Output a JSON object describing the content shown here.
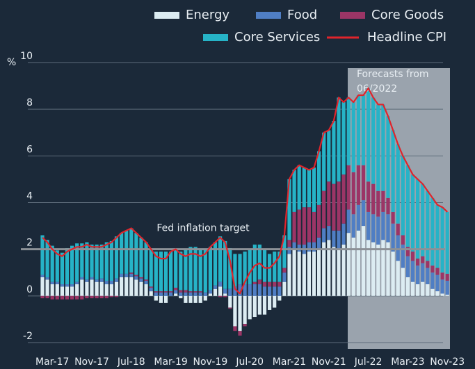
{
  "chart_data": {
    "type": "bar",
    "categories": [
      null,
      null,
      "Mar-17",
      null,
      null,
      null,
      null,
      null,
      null,
      null,
      "Nov-17",
      null,
      null,
      null,
      null,
      null,
      null,
      null,
      "Jul-18",
      null,
      null,
      null,
      null,
      null,
      null,
      null,
      "Mar-19",
      null,
      null,
      null,
      null,
      null,
      null,
      null,
      "Nov-19",
      null,
      null,
      null,
      null,
      null,
      null,
      null,
      "Jul-20",
      null,
      null,
      null,
      null,
      null,
      null,
      null,
      "Mar-21",
      null,
      null,
      null,
      null,
      null,
      null,
      null,
      "Nov-21",
      null,
      null,
      null,
      null,
      null,
      null,
      null,
      "Jul-22",
      null,
      null,
      null,
      null,
      null,
      null,
      null,
      "Mar-23",
      null,
      null,
      null,
      null,
      null,
      null,
      null,
      "Nov-23"
    ],
    "series": [
      {
        "name": "Energy",
        "color": "#dcecf2",
        "values": [
          0.8,
          0.7,
          0.5,
          0.5,
          0.4,
          0.4,
          0.4,
          0.5,
          0.7,
          0.6,
          0.7,
          0.6,
          0.6,
          0.5,
          0.5,
          0.6,
          0.8,
          0.8,
          0.8,
          0.7,
          0.6,
          0.5,
          0.2,
          -0.2,
          -0.3,
          -0.3,
          0.0,
          0.1,
          -0.1,
          -0.3,
          -0.3,
          -0.3,
          -0.3,
          -0.2,
          0.1,
          0.3,
          0.4,
          0.1,
          -0.5,
          -1.3,
          -1.5,
          -1.2,
          -1.0,
          -0.9,
          -0.8,
          -0.8,
          -0.6,
          -0.5,
          -0.2,
          0.6,
          1.8,
          2.0,
          1.9,
          1.8,
          1.9,
          1.9,
          2.0,
          2.3,
          2.4,
          2.1,
          2.0,
          2.2,
          2.7,
          2.5,
          2.8,
          3.0,
          2.4,
          2.3,
          2.2,
          2.4,
          2.3,
          1.9,
          1.5,
          1.2,
          0.8,
          0.6,
          0.5,
          0.6,
          0.5,
          0.3,
          0.2,
          0.1,
          0.05
        ]
      },
      {
        "name": "Food",
        "color": "#4f7ec4",
        "values": [
          0.1,
          0.1,
          0.1,
          0.1,
          0.1,
          0.1,
          0.1,
          0.1,
          0.1,
          0.1,
          0.1,
          0.1,
          0.15,
          0.15,
          0.15,
          0.15,
          0.15,
          0.15,
          0.15,
          0.15,
          0.15,
          0.15,
          0.15,
          0.15,
          0.15,
          0.15,
          0.15,
          0.15,
          0.15,
          0.15,
          0.15,
          0.15,
          0.15,
          0.15,
          0.15,
          0.15,
          0.2,
          0.2,
          0.3,
          0.4,
          0.5,
          0.5,
          0.5,
          0.5,
          0.5,
          0.4,
          0.4,
          0.4,
          0.4,
          0.4,
          0.3,
          0.3,
          0.3,
          0.4,
          0.4,
          0.4,
          0.5,
          0.6,
          0.6,
          0.7,
          0.8,
          0.9,
          1.0,
          1.0,
          1.1,
          1.1,
          1.2,
          1.2,
          1.2,
          1.2,
          1.2,
          1.2,
          1.1,
          1.0,
          0.9,
          0.9,
          0.8,
          0.8,
          0.7,
          0.7,
          0.7,
          0.6,
          0.6
        ]
      },
      {
        "name": "Core Goods",
        "color": "#9b3566",
        "values": [
          -0.1,
          -0.1,
          -0.15,
          -0.15,
          -0.15,
          -0.15,
          -0.15,
          -0.15,
          -0.15,
          -0.1,
          -0.1,
          -0.1,
          -0.1,
          -0.1,
          -0.05,
          -0.05,
          0,
          0,
          0.05,
          0.05,
          0.05,
          0.05,
          0.05,
          0.05,
          0.05,
          0.05,
          0.05,
          0.1,
          0.1,
          0.1,
          0.05,
          0.05,
          0.05,
          0,
          0,
          0,
          -0.05,
          -0.05,
          -0.05,
          -0.2,
          -0.2,
          -0.1,
          0,
          0.1,
          0.2,
          0.2,
          0.2,
          0.2,
          0.2,
          0.2,
          0.3,
          1.3,
          1.5,
          1.6,
          1.5,
          1.3,
          1.4,
          1.6,
          1.9,
          2.0,
          2.1,
          2.1,
          1.9,
          1.8,
          1.7,
          1.5,
          1.3,
          1.3,
          1.1,
          0.9,
          0.7,
          0.5,
          0.5,
          0.4,
          0.4,
          0.4,
          0.3,
          0.3,
          0.3,
          0.3,
          0.3,
          0.3,
          0.3
        ]
      },
      {
        "name": "Core Services",
        "color": "#26b3c7",
        "values": [
          1.7,
          1.6,
          1.55,
          1.35,
          1.35,
          1.55,
          1.65,
          1.65,
          1.45,
          1.6,
          1.4,
          1.5,
          1.45,
          1.65,
          1.7,
          1.8,
          1.75,
          1.85,
          1.9,
          1.8,
          1.7,
          1.6,
          1.6,
          1.7,
          1.7,
          1.7,
          1.7,
          1.65,
          1.65,
          1.75,
          1.9,
          1.9,
          1.8,
          1.85,
          1.85,
          1.85,
          1.95,
          2.05,
          1.75,
          1.4,
          1.3,
          1.4,
          1.5,
          1.6,
          1.5,
          1.4,
          1.2,
          1.3,
          1.3,
          1.4,
          2.6,
          1.8,
          1.9,
          1.7,
          1.6,
          1.9,
          2.3,
          2.5,
          2.2,
          2.7,
          3.6,
          3.1,
          2.9,
          3.0,
          3.0,
          3.0,
          4.0,
          3.7,
          3.7,
          3.7,
          3.5,
          3.5,
          3.4,
          3.4,
          3.5,
          3.3,
          3.4,
          3.1,
          3.0,
          2.9,
          2.7,
          2.8,
          2.65
        ]
      },
      {
        "name": "Headline CPI",
        "color": "#e0242b",
        "type": "line",
        "values": [
          2.5,
          2.3,
          2.0,
          1.8,
          1.7,
          1.9,
          2.0,
          2.1,
          2.1,
          2.2,
          2.1,
          2.1,
          2.1,
          2.2,
          2.3,
          2.5,
          2.7,
          2.8,
          2.9,
          2.7,
          2.5,
          2.3,
          2.0,
          1.7,
          1.6,
          1.6,
          1.9,
          2.0,
          1.8,
          1.7,
          1.8,
          1.8,
          1.7,
          1.8,
          2.1,
          2.3,
          2.5,
          2.3,
          1.5,
          0.3,
          0.1,
          0.6,
          1.0,
          1.3,
          1.4,
          1.2,
          1.2,
          1.4,
          1.7,
          2.6,
          5.0,
          5.4,
          5.6,
          5.5,
          5.4,
          5.5,
          6.2,
          7.0,
          7.1,
          7.5,
          8.5,
          8.3,
          8.5,
          8.3,
          8.6,
          8.6,
          8.9,
          8.5,
          8.2,
          8.2,
          7.7,
          7.1,
          6.5,
          6.0,
          5.6,
          5.2,
          5.0,
          4.8,
          4.5,
          4.2,
          3.9,
          3.8,
          3.6
        ]
      }
    ],
    "y_label": "%",
    "ylim": [
      -2.2,
      10
    ],
    "yticks": [
      -2,
      0,
      2,
      4,
      6,
      8,
      10
    ],
    "grid": true,
    "target": {
      "value": 2,
      "label": "Fed inflation target"
    },
    "forecast_label": "Forecasts from 06/2022",
    "legend": "top"
  }
}
